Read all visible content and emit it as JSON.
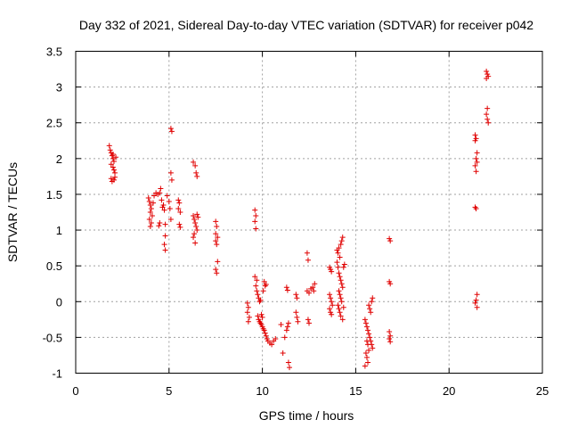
{
  "chart_data": {
    "type": "scatter",
    "title": "Day 332 of 2021, Sidereal Day-to-day VTEC variation (SDTVAR) for receiver p042",
    "xlabel": "GPS time / hours",
    "ylabel": "SDTVAR / TECUs",
    "xlim": [
      0,
      25
    ],
    "ylim": [
      -1,
      3.5
    ],
    "xticks": [
      0,
      5,
      10,
      15,
      20,
      25
    ],
    "xtick_labels": [
      "0",
      "5",
      "10",
      "15",
      "20",
      "25"
    ],
    "yticks": [
      -1,
      -0.5,
      0,
      0.5,
      1,
      1.5,
      2,
      2.5,
      3,
      3.5
    ],
    "ytick_labels": [
      "-1",
      "-0.5",
      "0",
      "0.5",
      "1",
      "1.5",
      "2",
      "2.5",
      "3",
      "3.5"
    ],
    "grid": true,
    "marker": "plus",
    "color": "#e00000",
    "series": [
      {
        "name": "SDTVAR",
        "points": [
          [
            1.8,
            2.18
          ],
          [
            1.85,
            2.12
          ],
          [
            1.9,
            2.08
          ],
          [
            1.95,
            2.04
          ],
          [
            2.0,
            2.0
          ],
          [
            2.05,
            1.96
          ],
          [
            1.9,
            1.92
          ],
          [
            2.0,
            1.88
          ],
          [
            2.05,
            1.84
          ],
          [
            2.1,
            1.8
          ],
          [
            1.9,
            1.72
          ],
          [
            1.95,
            1.68
          ],
          [
            2.05,
            1.7
          ],
          [
            2.1,
            1.74
          ],
          [
            2.15,
            2.02
          ],
          [
            2.0,
            2.06
          ],
          [
            3.9,
            1.45
          ],
          [
            3.95,
            1.4
          ],
          [
            4.0,
            1.35
          ],
          [
            4.05,
            1.3
          ],
          [
            4.0,
            1.25
          ],
          [
            4.1,
            1.2
          ],
          [
            3.95,
            1.15
          ],
          [
            4.05,
            1.1
          ],
          [
            4.0,
            1.05
          ],
          [
            4.15,
            1.38
          ],
          [
            4.2,
            1.48
          ],
          [
            4.3,
            1.52
          ],
          [
            4.4,
            1.5
          ],
          [
            4.5,
            1.52
          ],
          [
            4.55,
            1.58
          ],
          [
            4.6,
            1.42
          ],
          [
            4.65,
            1.32
          ],
          [
            4.7,
            1.35
          ],
          [
            4.75,
            1.28
          ],
          [
            4.5,
            1.1
          ],
          [
            4.45,
            1.06
          ],
          [
            4.8,
            1.08
          ],
          [
            4.8,
            0.92
          ],
          [
            4.75,
            0.8
          ],
          [
            4.8,
            0.72
          ],
          [
            4.9,
            1.48
          ],
          [
            5.0,
            1.4
          ],
          [
            5.05,
            1.3
          ],
          [
            5.1,
            1.15
          ],
          [
            5.1,
            1.8
          ],
          [
            5.15,
            1.7
          ],
          [
            5.1,
            2.42
          ],
          [
            5.15,
            2.38
          ],
          [
            5.5,
            1.42
          ],
          [
            5.55,
            1.38
          ],
          [
            5.5,
            1.3
          ],
          [
            5.6,
            1.25
          ],
          [
            5.55,
            1.08
          ],
          [
            5.6,
            1.04
          ],
          [
            6.3,
            1.95
          ],
          [
            6.4,
            1.9
          ],
          [
            6.45,
            1.8
          ],
          [
            6.5,
            1.75
          ],
          [
            6.3,
            1.2
          ],
          [
            6.35,
            1.15
          ],
          [
            6.4,
            1.1
          ],
          [
            6.45,
            1.05
          ],
          [
            6.5,
            1.0
          ],
          [
            6.35,
            0.95
          ],
          [
            6.3,
            0.9
          ],
          [
            6.4,
            0.82
          ],
          [
            6.5,
            1.22
          ],
          [
            6.55,
            1.18
          ],
          [
            7.5,
            1.12
          ],
          [
            7.55,
            1.05
          ],
          [
            7.5,
            0.95
          ],
          [
            7.6,
            0.9
          ],
          [
            7.5,
            0.85
          ],
          [
            7.55,
            0.8
          ],
          [
            7.6,
            0.56
          ],
          [
            7.5,
            0.45
          ],
          [
            7.55,
            0.4
          ],
          [
            9.2,
            -0.02
          ],
          [
            9.25,
            -0.08
          ],
          [
            9.2,
            -0.15
          ],
          [
            9.3,
            -0.22
          ],
          [
            9.25,
            -0.28
          ],
          [
            9.6,
            1.28
          ],
          [
            9.65,
            1.2
          ],
          [
            9.6,
            1.12
          ],
          [
            9.65,
            1.02
          ],
          [
            9.6,
            0.35
          ],
          [
            9.7,
            0.3
          ],
          [
            9.65,
            0.22
          ],
          [
            9.7,
            0.15
          ],
          [
            9.75,
            0.1
          ],
          [
            9.8,
            0.05
          ],
          [
            9.85,
            0.0
          ],
          [
            9.9,
            0.02
          ],
          [
            9.75,
            -0.2
          ],
          [
            9.8,
            -0.25
          ],
          [
            9.85,
            -0.28
          ],
          [
            9.9,
            -0.3
          ],
          [
            9.95,
            -0.32
          ],
          [
            10.0,
            -0.35
          ],
          [
            10.05,
            -0.38
          ],
          [
            10.1,
            -0.4
          ],
          [
            10.15,
            -0.44
          ],
          [
            10.2,
            -0.48
          ],
          [
            10.25,
            -0.52
          ],
          [
            10.3,
            -0.55
          ],
          [
            10.4,
            -0.58
          ],
          [
            10.5,
            -0.6
          ],
          [
            10.6,
            -0.55
          ],
          [
            10.7,
            -0.52
          ],
          [
            10.1,
            0.28
          ],
          [
            10.15,
            0.22
          ],
          [
            10.05,
            0.15
          ],
          [
            10.2,
            0.24
          ],
          [
            9.95,
            -0.18
          ],
          [
            10.0,
            -0.22
          ],
          [
            11.0,
            -0.32
          ],
          [
            11.1,
            -0.72
          ],
          [
            11.2,
            -0.5
          ],
          [
            11.3,
            -0.4
          ],
          [
            11.35,
            -0.35
          ],
          [
            11.4,
            -0.3
          ],
          [
            11.3,
            0.2
          ],
          [
            11.35,
            0.16
          ],
          [
            11.4,
            -0.85
          ],
          [
            11.45,
            -0.92
          ],
          [
            11.8,
            0.1
          ],
          [
            11.85,
            0.05
          ],
          [
            11.8,
            -0.15
          ],
          [
            11.85,
            -0.22
          ],
          [
            11.9,
            -0.28
          ],
          [
            12.4,
            0.68
          ],
          [
            12.45,
            0.58
          ],
          [
            12.4,
            0.15
          ],
          [
            12.5,
            0.12
          ],
          [
            12.6,
            0.18
          ],
          [
            12.7,
            0.2
          ],
          [
            12.75,
            0.15
          ],
          [
            12.8,
            0.25
          ],
          [
            12.45,
            -0.25
          ],
          [
            12.5,
            -0.3
          ],
          [
            13.6,
            0.48
          ],
          [
            13.65,
            0.45
          ],
          [
            13.7,
            0.42
          ],
          [
            13.6,
            0.1
          ],
          [
            13.65,
            0.05
          ],
          [
            13.7,
            0.0
          ],
          [
            13.75,
            -0.05
          ],
          [
            13.6,
            -0.1
          ],
          [
            13.65,
            -0.15
          ],
          [
            13.7,
            -0.18
          ],
          [
            14.0,
            0.72
          ],
          [
            14.05,
            0.68
          ],
          [
            14.1,
            0.75
          ],
          [
            14.15,
            0.62
          ],
          [
            14.2,
            0.8
          ],
          [
            14.25,
            0.85
          ],
          [
            14.3,
            0.9
          ],
          [
            14.0,
            0.55
          ],
          [
            14.05,
            0.48
          ],
          [
            14.1,
            0.4
          ],
          [
            14.15,
            0.35
          ],
          [
            14.2,
            0.3
          ],
          [
            14.25,
            0.25
          ],
          [
            14.3,
            0.2
          ],
          [
            14.1,
            0.15
          ],
          [
            14.15,
            0.1
          ],
          [
            14.2,
            0.05
          ],
          [
            14.25,
            0.0
          ],
          [
            14.05,
            -0.05
          ],
          [
            14.1,
            -0.1
          ],
          [
            14.15,
            -0.15
          ],
          [
            14.2,
            -0.2
          ],
          [
            14.3,
            -0.25
          ],
          [
            14.35,
            -0.08
          ],
          [
            14.35,
            0.48
          ],
          [
            14.4,
            0.52
          ],
          [
            15.5,
            -0.25
          ],
          [
            15.55,
            -0.3
          ],
          [
            15.6,
            -0.35
          ],
          [
            15.65,
            -0.4
          ],
          [
            15.7,
            -0.45
          ],
          [
            15.75,
            -0.5
          ],
          [
            15.8,
            -0.55
          ],
          [
            15.85,
            -0.6
          ],
          [
            15.9,
            -0.65
          ],
          [
            15.55,
            -0.72
          ],
          [
            15.6,
            -0.78
          ],
          [
            15.65,
            -0.85
          ],
          [
            15.5,
            -0.9
          ],
          [
            15.7,
            -0.05
          ],
          [
            15.75,
            -0.1
          ],
          [
            15.8,
            -0.15
          ],
          [
            15.85,
            0.0
          ],
          [
            15.9,
            0.05
          ],
          [
            15.6,
            -0.55
          ],
          [
            15.65,
            -0.6
          ],
          [
            15.7,
            -0.68
          ],
          [
            16.8,
            0.88
          ],
          [
            16.85,
            0.85
          ],
          [
            16.8,
            0.28
          ],
          [
            16.85,
            0.25
          ],
          [
            16.8,
            -0.42
          ],
          [
            16.85,
            -0.48
          ],
          [
            16.8,
            -0.52
          ],
          [
            16.85,
            -0.56
          ],
          [
            21.4,
            2.33
          ],
          [
            21.45,
            2.28
          ],
          [
            21.4,
            2.25
          ],
          [
            21.5,
            2.08
          ],
          [
            21.45,
            2.0
          ],
          [
            21.5,
            1.95
          ],
          [
            21.4,
            1.9
          ],
          [
            21.45,
            1.82
          ],
          [
            21.4,
            1.32
          ],
          [
            21.45,
            1.3
          ],
          [
            21.5,
            0.1
          ],
          [
            21.45,
            0.02
          ],
          [
            21.4,
            -0.02
          ],
          [
            21.5,
            -0.08
          ],
          [
            22.0,
            3.22
          ],
          [
            22.05,
            3.18
          ],
          [
            22.1,
            3.15
          ],
          [
            22.0,
            3.12
          ],
          [
            22.05,
            2.7
          ],
          [
            22.0,
            2.62
          ],
          [
            22.05,
            2.55
          ],
          [
            22.1,
            2.5
          ]
        ]
      }
    ]
  }
}
